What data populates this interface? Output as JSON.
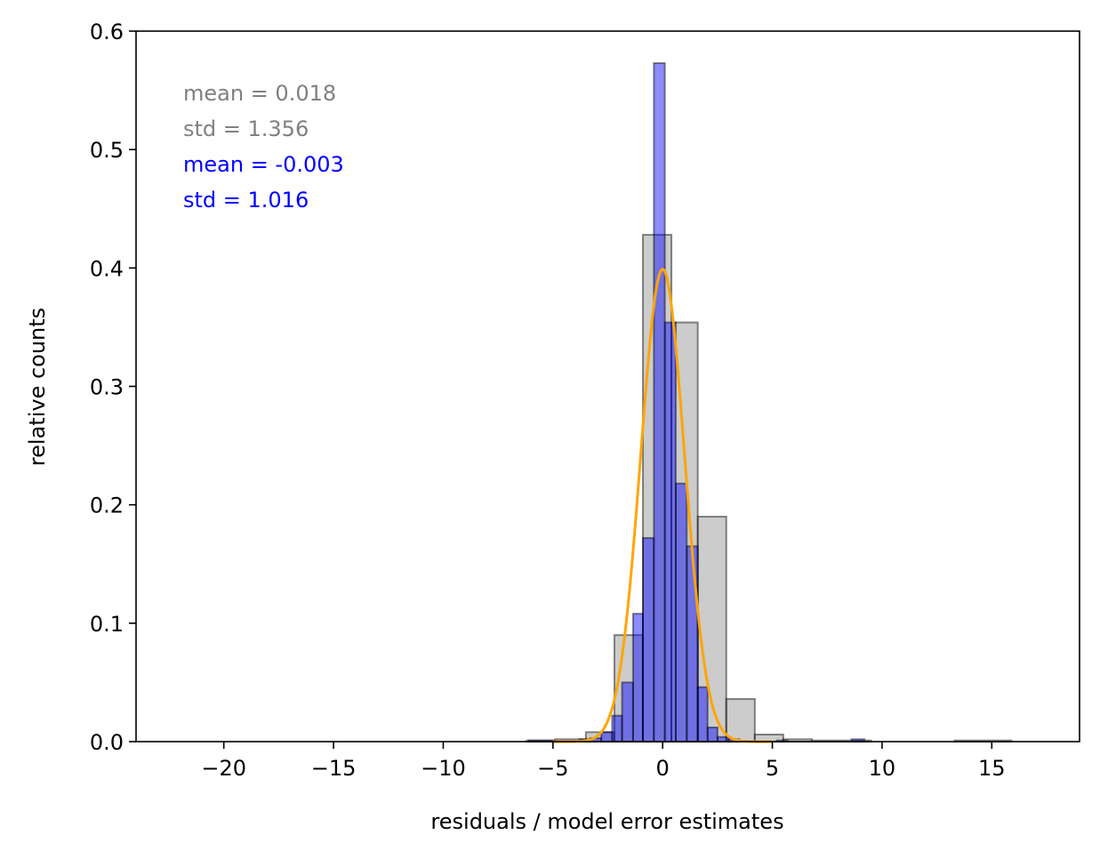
{
  "chart_data": {
    "type": "bar",
    "xlabel": "residuals / model error estimates",
    "ylabel": "relative counts",
    "xlim": [
      -24,
      19
    ],
    "ylim": [
      0,
      0.6
    ],
    "x_ticks": [
      -20,
      -15,
      -10,
      -5,
      0,
      5,
      10,
      15
    ],
    "y_ticks": [
      0.0,
      0.1,
      0.2,
      0.3,
      0.4,
      0.5,
      0.6
    ],
    "x_tick_labels": [
      "−20",
      "−15",
      "−10",
      "−5",
      "0",
      "5",
      "10",
      "15"
    ],
    "y_tick_labels": [
      "0.0",
      "0.1",
      "0.2",
      "0.3",
      "0.4",
      "0.5",
      "0.6"
    ],
    "grid": false,
    "annotations": [
      {
        "text": "mean = 0.018",
        "color": "#808080"
      },
      {
        "text": "std = 1.356",
        "color": "#808080"
      },
      {
        "text": "mean = -0.003",
        "color": "#0000ff"
      },
      {
        "text": "std = 1.016",
        "color": "#0000ff"
      }
    ],
    "series": [
      {
        "color": "#808080",
        "fill_opacity": 0.4,
        "edge": "#000000",
        "bins": [
          {
            "x0": -21.8,
            "x1": -6.2,
            "y": 0.0
          },
          {
            "x0": -6.2,
            "x1": -4.9,
            "y": 0.001
          },
          {
            "x0": -4.9,
            "x1": -3.5,
            "y": 0.002
          },
          {
            "x0": -3.5,
            "x1": -2.2,
            "y": 0.008
          },
          {
            "x0": -2.2,
            "x1": -0.9,
            "y": 0.09
          },
          {
            "x0": -0.9,
            "x1": 0.4,
            "y": 0.428
          },
          {
            "x0": 0.4,
            "x1": 1.6,
            "y": 0.354
          },
          {
            "x0": 1.6,
            "x1": 2.9,
            "y": 0.19
          },
          {
            "x0": 2.9,
            "x1": 4.2,
            "y": 0.036
          },
          {
            "x0": 4.2,
            "x1": 5.5,
            "y": 0.006
          },
          {
            "x0": 5.5,
            "x1": 6.8,
            "y": 0.002
          },
          {
            "x0": 6.8,
            "x1": 9.5,
            "y": 0.001
          },
          {
            "x0": 9.5,
            "x1": 13.3,
            "y": 0.0
          },
          {
            "x0": 13.3,
            "x1": 15.9,
            "y": 0.001
          },
          {
            "x0": 15.9,
            "x1": 17.3,
            "y": 0.0
          }
        ]
      },
      {
        "color": "#0000ff",
        "fill_opacity": 0.45,
        "edge": "#000000",
        "bins": [
          {
            "x0": -6.1,
            "x1": -4.9,
            "y": 0.001
          },
          {
            "x0": -3.8,
            "x1": -3.3,
            "y": 0.002
          },
          {
            "x0": -3.3,
            "x1": -2.8,
            "y": 0.003
          },
          {
            "x0": -2.8,
            "x1": -2.3,
            "y": 0.008
          },
          {
            "x0": -2.3,
            "x1": -1.85,
            "y": 0.022
          },
          {
            "x0": -1.85,
            "x1": -1.35,
            "y": 0.05
          },
          {
            "x0": -1.35,
            "x1": -0.9,
            "y": 0.108
          },
          {
            "x0": -0.9,
            "x1": -0.4,
            "y": 0.172
          },
          {
            "x0": -0.4,
            "x1": 0.1,
            "y": 0.573
          },
          {
            "x0": 0.1,
            "x1": 0.6,
            "y": 0.354
          },
          {
            "x0": 0.6,
            "x1": 1.1,
            "y": 0.218
          },
          {
            "x0": 1.1,
            "x1": 1.6,
            "y": 0.165
          },
          {
            "x0": 1.6,
            "x1": 2.05,
            "y": 0.046
          },
          {
            "x0": 2.05,
            "x1": 2.5,
            "y": 0.012
          },
          {
            "x0": 2.5,
            "x1": 3.0,
            "y": 0.004
          },
          {
            "x0": 3.0,
            "x1": 3.5,
            "y": 0.002
          },
          {
            "x0": 5.2,
            "x1": 5.7,
            "y": 0.001
          },
          {
            "x0": 8.6,
            "x1": 9.2,
            "y": 0.002
          }
        ]
      }
    ],
    "curve": {
      "type": "normal_pdf",
      "mean": 0,
      "std": 1,
      "x_range": [
        -5,
        5
      ],
      "color": "#ffa500"
    }
  }
}
